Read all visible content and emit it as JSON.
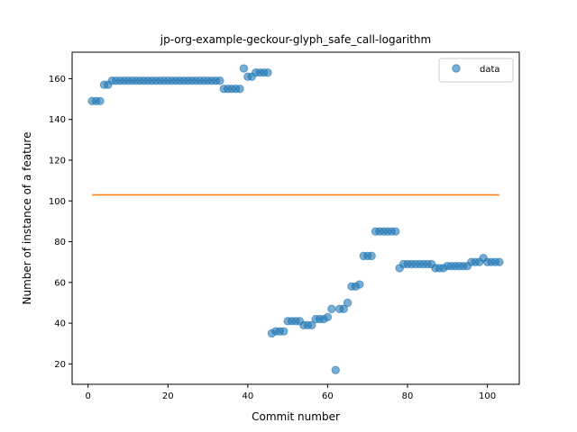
{
  "chart_data": {
    "type": "scatter",
    "title": "jp-org-example-geckour-glyph_safe_call-logarithm",
    "xlabel": "Commit number",
    "ylabel": "Number of instance of a feature",
    "xlim": [
      -4,
      108
    ],
    "ylim": [
      10,
      173
    ],
    "xticks": [
      0,
      20,
      40,
      60,
      80,
      100
    ],
    "yticks": [
      20,
      40,
      60,
      80,
      100,
      120,
      140,
      160
    ],
    "grid": false,
    "legend_position": "top-right",
    "colors": {
      "data": "#1f77b4",
      "line": "#ff7f0e"
    },
    "series": [
      {
        "name": "data",
        "kind": "scatter",
        "x": [
          1,
          2,
          3,
          4,
          5,
          6,
          7,
          8,
          9,
          10,
          11,
          12,
          13,
          14,
          15,
          16,
          17,
          18,
          19,
          20,
          21,
          22,
          23,
          24,
          25,
          26,
          27,
          28,
          29,
          30,
          31,
          32,
          33,
          34,
          35,
          36,
          37,
          38,
          39,
          40,
          41,
          42,
          43,
          44,
          45,
          46,
          47,
          48,
          49,
          50,
          51,
          52,
          53,
          54,
          55,
          56,
          57,
          58,
          59,
          60,
          61,
          62,
          63,
          64,
          65,
          66,
          67,
          68,
          69,
          70,
          71,
          72,
          73,
          74,
          75,
          76,
          77,
          78,
          79,
          80,
          81,
          82,
          83,
          84,
          85,
          86,
          87,
          88,
          89,
          90,
          91,
          92,
          93,
          94,
          95,
          96,
          97,
          98,
          99,
          100,
          101,
          102,
          103
        ],
        "y": [
          149,
          149,
          149,
          157,
          157,
          159,
          159,
          159,
          159,
          159,
          159,
          159,
          159,
          159,
          159,
          159,
          159,
          159,
          159,
          159,
          159,
          159,
          159,
          159,
          159,
          159,
          159,
          159,
          159,
          159,
          159,
          159,
          159,
          155,
          155,
          155,
          155,
          155,
          165,
          161,
          161,
          163,
          163,
          163,
          163,
          35,
          36,
          36,
          36,
          41,
          41,
          41,
          41,
          39,
          39,
          39,
          42,
          42,
          42,
          43,
          47,
          17,
          47,
          47,
          50,
          58,
          58,
          59,
          73,
          73,
          73,
          85,
          85,
          85,
          85,
          85,
          85,
          67,
          69,
          69,
          69,
          69,
          69,
          69,
          69,
          69,
          67,
          67,
          67,
          68,
          68,
          68,
          68,
          68,
          68,
          70,
          70,
          70,
          72,
          70,
          70,
          70,
          70
        ]
      },
      {
        "name": "",
        "kind": "line",
        "x": [
          1,
          103
        ],
        "y": [
          103,
          103
        ]
      }
    ]
  }
}
